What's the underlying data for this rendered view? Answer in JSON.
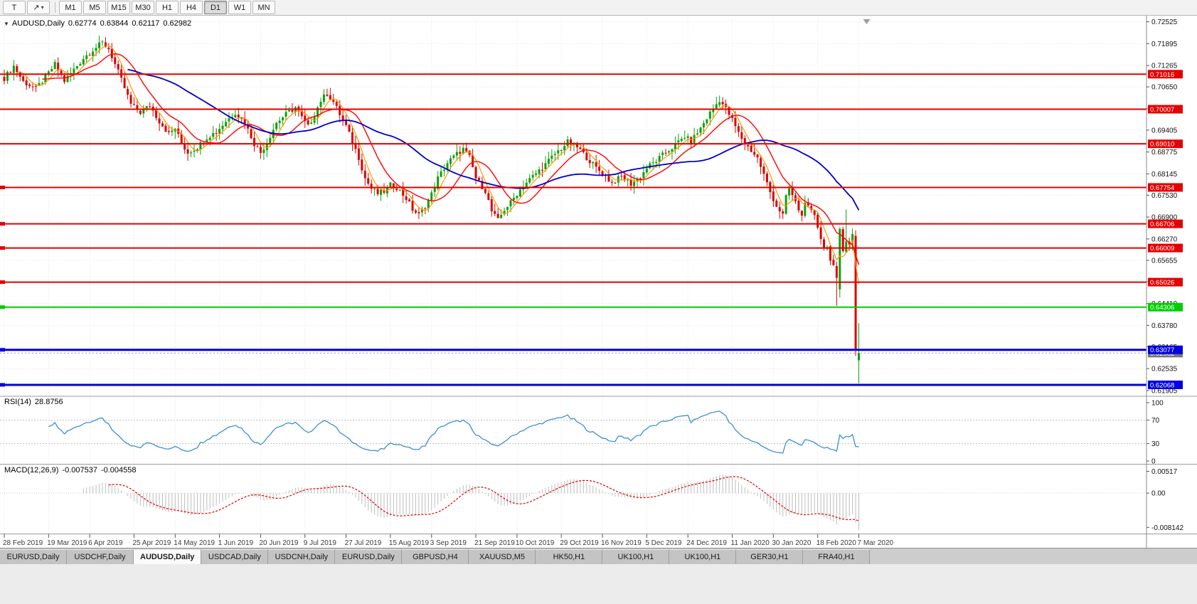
{
  "toolbar": {
    "text_tool_label": "T",
    "draw_tool_icon": "↗",
    "caret_icon": "▾",
    "timeframes": [
      "M1",
      "M5",
      "M15",
      "M30",
      "H1",
      "H4",
      "D1",
      "W1",
      "MN"
    ],
    "active_timeframe": "D1"
  },
  "chart": {
    "collapse_icon": "▼",
    "symbol_header": "AUDUSD,Daily",
    "ohlc": {
      "open": "0.62774",
      "high": "0.63844",
      "low": "0.62117",
      "close": "0.62982"
    },
    "colors": {
      "up": "#0DA10D",
      "down": "#DC0000",
      "ma_fast": "#FF9900",
      "ma_mid": "#FF0000",
      "ma_slow": "#0000C8",
      "level_red": "#E40000",
      "level_green": "#00CE00",
      "level_blue": "#0000E0",
      "rsi": "#2E86D0",
      "macd_hist": "#BDBDBD",
      "macd_signal": "#E00000",
      "grid": "#E7E7E7",
      "axis_text": "#111111",
      "date_text": "#3c3c3c",
      "current_price_bg": "#767676"
    }
  },
  "indicators": {
    "rsi": {
      "label": "RSI(14)",
      "value": "28.8756",
      "ticks": [
        "100",
        "70",
        "30",
        "0"
      ],
      "level_lines": [
        70,
        30
      ]
    },
    "macd": {
      "label": "MACD(12,26,9)",
      "values": [
        "-0.007537",
        "-0.004558"
      ],
      "ticks": [
        "0.00517",
        "0.00",
        "-0.008142"
      ]
    }
  },
  "tabs": {
    "active_index": 2,
    "items": [
      "EURUSD,Daily",
      "USDCHF,Daily",
      "AUDUSD,Daily",
      "USDCAD,Daily",
      "USDCNH,Daily",
      "EURUSD,Daily",
      "GBPUSD,H4",
      "XAUUSD,M5",
      "HK50,H1",
      "UK100,H1",
      "UK100,H1",
      "GER30,H1",
      "FRA40,H1"
    ]
  },
  "chart_data": {
    "type": "candlestick",
    "symbol": "AUDUSD",
    "timeframe": "Daily",
    "last_bar_ohlc": {
      "open": 0.62774,
      "high": 0.63844,
      "low": 0.62117,
      "close": 0.62982
    },
    "current_price": 0.62982,
    "visible_price_range": [
      0.6176,
      0.7262
    ],
    "bars": 271,
    "noise": 0.0016,
    "price_axis_ticks": [
      "0.72525",
      "0.71895",
      "0.71265",
      "0.70650",
      "0.70020",
      "0.69405",
      "0.68775",
      "0.68145",
      "0.67530",
      "0.66900",
      "0.66270",
      "0.65655",
      "0.65040",
      "0.64410",
      "0.63780",
      "0.63165",
      "0.62535",
      "0.61905"
    ],
    "date_labels": [
      "28 Feb 2019",
      "19 Mar 2019",
      "6 Apr 2019",
      "25 Apr 2019",
      "14 May 2019",
      "1 Jun 2019",
      "20 Jun 2019",
      "9 Jul 2019",
      "27 Jul 2019",
      "15 Aug 2019",
      "3 Sep 2019",
      "21 Sep 2019",
      "10 Oct 2019",
      "29 Oct 2019",
      "16 Nov 2019",
      "5 Dec 2019",
      "24 Dec 2019",
      "11 Jan 2020",
      "30 Jan 2020",
      "18 Feb 2020",
      "7 Mar 2020"
    ],
    "date_tick_bars": [
      0,
      14,
      27,
      41,
      54,
      68,
      81,
      95,
      108,
      122,
      135,
      149,
      162,
      176,
      189,
      203,
      216,
      230,
      243,
      257,
      270
    ],
    "levels": [
      {
        "price": 0.71016,
        "label": "0.71016",
        "color_key": "level_red",
        "width": 2,
        "left_marker": false
      },
      {
        "price": 0.70007,
        "label": "0.70007",
        "color_key": "level_red",
        "width": 2,
        "left_marker": false
      },
      {
        "price": 0.6901,
        "label": "0.69010",
        "color_key": "level_red",
        "width": 2,
        "left_marker": false
      },
      {
        "price": 0.67754,
        "label": "0.67754",
        "color_key": "level_red",
        "width": 2,
        "left_marker": true
      },
      {
        "price": 0.66706,
        "label": "0.66706",
        "color_key": "level_red",
        "width": 2,
        "left_marker": true
      },
      {
        "price": 0.66009,
        "label": "0.66009",
        "color_key": "level_red",
        "width": 2,
        "left_marker": true
      },
      {
        "price": 0.65026,
        "label": "0.65026",
        "color_key": "level_red",
        "width": 2,
        "left_marker": true
      },
      {
        "price": 0.64306,
        "label": "0.64306",
        "color_key": "level_green",
        "width": 2,
        "left_marker": true
      },
      {
        "price": 0.63077,
        "label": "0.63077",
        "color_key": "level_blue",
        "width": 3,
        "left_marker": true
      },
      {
        "price": 0.62068,
        "label": "0.62068",
        "color_key": "level_blue",
        "width": 3,
        "left_marker": true
      }
    ],
    "moving_averages": [
      {
        "type": "sma",
        "period": 5,
        "color_key": "ma_fast",
        "width": 1.2
      },
      {
        "type": "sma",
        "period": 13,
        "color_key": "ma_mid",
        "width": 1.4
      },
      {
        "type": "sma",
        "period": 40,
        "color_key": "ma_slow",
        "width": 1.8
      }
    ],
    "indicators": {
      "rsi": {
        "period": 14,
        "last_value": 28.8756
      },
      "macd": {
        "fast": 12,
        "slow": 26,
        "signal": 9,
        "last_macd": -0.007537,
        "last_signal": -0.004558,
        "axis_max": 0.00517,
        "axis_min": -0.008142
      }
    },
    "anchors": [
      [
        0,
        0.709
      ],
      [
        3,
        0.7125
      ],
      [
        6,
        0.708
      ],
      [
        10,
        0.706
      ],
      [
        13,
        0.7092
      ],
      [
        16,
        0.713
      ],
      [
        19,
        0.7082
      ],
      [
        22,
        0.7115
      ],
      [
        25,
        0.7148
      ],
      [
        28,
        0.7172
      ],
      [
        31,
        0.7192
      ],
      [
        33,
        0.7175
      ],
      [
        35,
        0.713
      ],
      [
        37,
        0.7085
      ],
      [
        40,
        0.7015
      ],
      [
        43,
        0.6992
      ],
      [
        46,
        0.7012
      ],
      [
        49,
        0.6966
      ],
      [
        52,
        0.693
      ],
      [
        54,
        0.6946
      ],
      [
        56,
        0.6902
      ],
      [
        58,
        0.6876
      ],
      [
        61,
        0.6892
      ],
      [
        64,
        0.692
      ],
      [
        67,
        0.6936
      ],
      [
        70,
        0.6966
      ],
      [
        73,
        0.6992
      ],
      [
        76,
        0.6962
      ],
      [
        79,
        0.6902
      ],
      [
        81,
        0.6876
      ],
      [
        83,
        0.6906
      ],
      [
        86,
        0.6962
      ],
      [
        89,
        0.6986
      ],
      [
        92,
        0.7006
      ],
      [
        94,
        0.6976
      ],
      [
        96,
        0.695
      ],
      [
        98,
        0.6986
      ],
      [
        100,
        0.7026
      ],
      [
        102,
        0.7046
      ],
      [
        104,
        0.7022
      ],
      [
        106,
        0.6986
      ],
      [
        108,
        0.6952
      ],
      [
        110,
        0.6906
      ],
      [
        112,
        0.6862
      ],
      [
        114,
        0.6802
      ],
      [
        116,
        0.6772
      ],
      [
        118,
        0.6758
      ],
      [
        120,
        0.6764
      ],
      [
        122,
        0.6782
      ],
      [
        124,
        0.6776
      ],
      [
        127,
        0.6744
      ],
      [
        129,
        0.6712
      ],
      [
        131,
        0.6696
      ],
      [
        133,
        0.6722
      ],
      [
        135,
        0.6756
      ],
      [
        137,
        0.6802
      ],
      [
        140,
        0.6846
      ],
      [
        143,
        0.6872
      ],
      [
        145,
        0.6886
      ],
      [
        147,
        0.6862
      ],
      [
        149,
        0.6802
      ],
      [
        152,
        0.6766
      ],
      [
        154,
        0.6706
      ],
      [
        156,
        0.668
      ],
      [
        158,
        0.6712
      ],
      [
        160,
        0.6732
      ],
      [
        162,
        0.6758
      ],
      [
        165,
        0.679
      ],
      [
        168,
        0.6816
      ],
      [
        171,
        0.6842
      ],
      [
        174,
        0.6872
      ],
      [
        176,
        0.6888
      ],
      [
        178,
        0.6906
      ],
      [
        181,
        0.6892
      ],
      [
        184,
        0.6862
      ],
      [
        187,
        0.6832
      ],
      [
        189,
        0.6816
      ],
      [
        192,
        0.6788
      ],
      [
        195,
        0.6806
      ],
      [
        198,
        0.6786
      ],
      [
        201,
        0.6806
      ],
      [
        203,
        0.6832
      ],
      [
        206,
        0.6852
      ],
      [
        209,
        0.6876
      ],
      [
        212,
        0.6898
      ],
      [
        215,
        0.6922
      ],
      [
        217,
        0.6908
      ],
      [
        220,
        0.6946
      ],
      [
        223,
        0.699
      ],
      [
        226,
        0.7028
      ],
      [
        228,
        0.7002
      ],
      [
        230,
        0.697
      ],
      [
        232,
        0.6932
      ],
      [
        234,
        0.6902
      ],
      [
        236,
        0.6882
      ],
      [
        238,
        0.686
      ],
      [
        240,
        0.6812
      ],
      [
        242,
        0.6762
      ],
      [
        244,
        0.6722
      ],
      [
        246,
        0.6696
      ],
      [
        247,
        0.6746
      ],
      [
        248,
        0.6772
      ],
      [
        250,
        0.6732
      ],
      [
        252,
        0.6692
      ],
      [
        253,
        0.6738
      ],
      [
        254,
        0.6716
      ],
      [
        256,
        0.669
      ],
      [
        257,
        0.6662
      ],
      [
        258,
        0.6632
      ],
      [
        259,
        0.6602
      ],
      [
        260,
        0.6602
      ],
      [
        261,
        0.6572
      ],
      [
        262,
        0.655
      ],
      [
        263,
        0.6515
      ],
      [
        264,
        0.6656
      ],
      [
        265,
        0.6592
      ],
      [
        266,
        0.662
      ],
      [
        267,
        0.6615
      ],
      [
        268,
        0.6639
      ],
      [
        269,
        0.631
      ],
      [
        270,
        0.62982
      ]
    ],
    "explicit_candles": {
      "263": [
        0.6549,
        0.6562,
        0.6434,
        0.6515
      ],
      "264": [
        0.6482,
        0.6661,
        0.6458,
        0.6656
      ],
      "266": [
        0.659,
        0.6712,
        0.6586,
        0.662
      ],
      "269": [
        0.6636,
        0.6652,
        0.629,
        0.631
      ],
      "270": [
        0.62774,
        0.63844,
        0.62117,
        0.62982
      ]
    }
  }
}
